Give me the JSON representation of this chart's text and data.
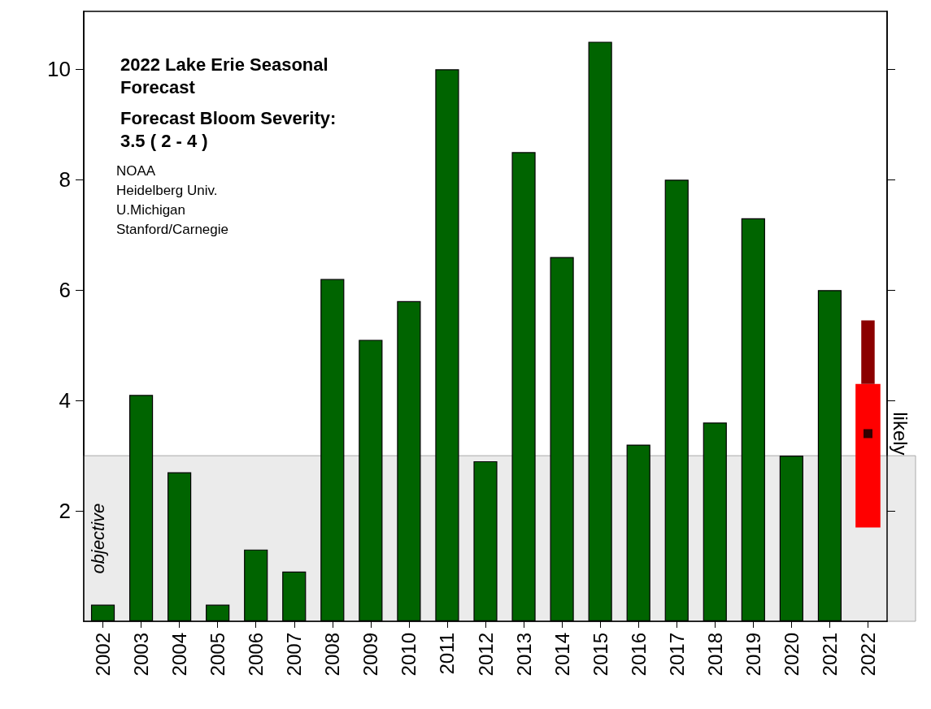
{
  "chart_data": {
    "type": "bar",
    "title": "2022 Lake Erie Seasonal Forecast",
    "subtitle": "Forecast Bloom Severity: 3.5 ( 2 - 4 )",
    "categories": [
      "2002",
      "2003",
      "2004",
      "2005",
      "2006",
      "2007",
      "2008",
      "2009",
      "2010",
      "2011",
      "2012",
      "2013",
      "2014",
      "2015",
      "2016",
      "2017",
      "2018",
      "2019",
      "2020",
      "2021",
      "2022"
    ],
    "series": [
      {
        "color": "#006400",
        "values": [
          0.3,
          4.1,
          2.7,
          0.3,
          1.3,
          0.9,
          6.2,
          5.1,
          5.8,
          10.0,
          2.9,
          8.5,
          6.6,
          10.5,
          3.2,
          8.0,
          3.6,
          7.3,
          3.0,
          6.0,
          null
        ]
      },
      {
        "color": "#ff0000",
        "base": [
          null,
          null,
          null,
          null,
          null,
          null,
          null,
          null,
          null,
          null,
          null,
          null,
          null,
          null,
          null,
          null,
          null,
          null,
          null,
          null,
          1.7
        ],
        "values": [
          null,
          null,
          null,
          null,
          null,
          null,
          null,
          null,
          null,
          null,
          null,
          null,
          null,
          null,
          null,
          null,
          null,
          null,
          null,
          null,
          2.6
        ]
      },
      {
        "color": "#8b0000",
        "base": [
          null,
          null,
          null,
          null,
          null,
          null,
          null,
          null,
          null,
          null,
          null,
          null,
          null,
          null,
          null,
          null,
          null,
          null,
          null,
          null,
          4.3
        ],
        "values": [
          null,
          null,
          null,
          null,
          null,
          null,
          null,
          null,
          null,
          null,
          null,
          null,
          null,
          null,
          null,
          null,
          null,
          null,
          null,
          null,
          1.15
        ]
      },
      {
        "type": "scatter",
        "color": "#000000",
        "marker": "square",
        "values": [
          null,
          null,
          null,
          null,
          null,
          null,
          null,
          null,
          null,
          null,
          null,
          null,
          null,
          null,
          null,
          null,
          null,
          null,
          null,
          null,
          3.4
        ]
      }
    ],
    "ylim": [
      0,
      11.05
    ],
    "yticks": [
      2,
      4,
      6,
      8,
      10
    ],
    "bands": [
      {
        "axis": "y",
        "from": 0,
        "to": 3,
        "label": "objective",
        "color": "#ebebeb"
      }
    ],
    "annotations": [
      "NOAA",
      "Heidelberg Univ.",
      "U.Michigan",
      "Stanford/Carnegie",
      {
        "text": "likely",
        "x": "2022",
        "y": 3.4
      }
    ],
    "grid": false
  }
}
